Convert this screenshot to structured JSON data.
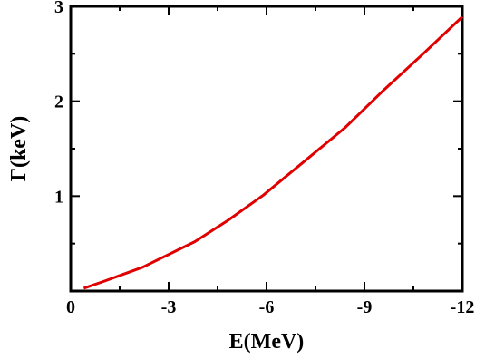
{
  "chart_data": {
    "type": "line",
    "xlabel": "E(MeV)",
    "ylabel": "Γ(keV)",
    "xlim": [
      0,
      -12
    ],
    "ylim": [
      0,
      3
    ],
    "x_ticks": [
      0,
      -3,
      -6,
      -9,
      -12
    ],
    "x_tick_labels": [
      "0",
      "-3",
      "-6",
      "-9",
      "-12"
    ],
    "y_ticks": [
      1,
      2,
      3
    ],
    "y_tick_labels": [
      "1",
      "2",
      "3"
    ],
    "grid": false,
    "series": [
      {
        "color": "#e00000",
        "x": [
          -0.4,
          -1.0,
          -2.2,
          -3.8,
          -4.8,
          -5.9,
          -7.1,
          -8.4,
          -9.6,
          -10.8,
          -12.0
        ],
        "y": [
          0.03,
          0.1,
          0.25,
          0.52,
          0.74,
          1.01,
          1.35,
          1.72,
          2.12,
          2.5,
          2.89
        ]
      }
    ]
  }
}
